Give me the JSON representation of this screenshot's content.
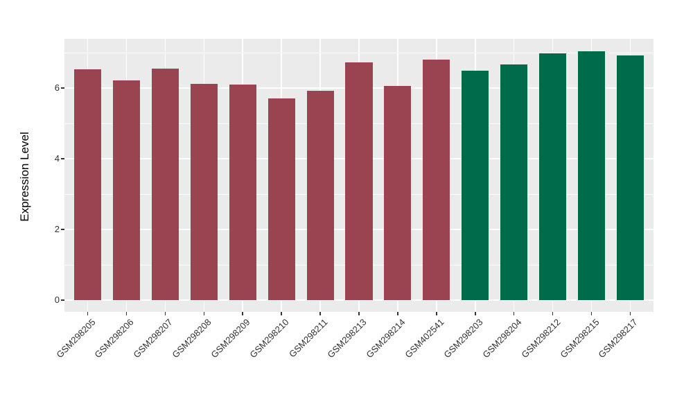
{
  "chart_data": {
    "type": "bar",
    "title": "",
    "xlabel": "",
    "ylabel": "Expression Level",
    "ylim": [
      0,
      7.39
    ],
    "yticks_major": [
      0,
      2,
      4,
      6
    ],
    "yticks_minor": [
      1,
      3,
      5,
      7
    ],
    "grid": "on",
    "legend": "none",
    "panel_background": "#EBEBEB",
    "grid_color": "#FFFFFF",
    "axis_text_color": "#303030",
    "categories": [
      "GSM298205",
      "GSM298206",
      "GSM298207",
      "GSM298208",
      "GSM298209",
      "GSM298210",
      "GSM298211",
      "GSM298213",
      "GSM298214",
      "GSM402541",
      "GSM298203",
      "GSM298204",
      "GSM298212",
      "GSM298215",
      "GSM298217"
    ],
    "series": [
      {
        "name": "Expression Level",
        "values": [
          6.52,
          6.22,
          6.55,
          6.12,
          6.1,
          5.71,
          5.93,
          6.73,
          6.05,
          6.81,
          6.49,
          6.67,
          6.99,
          7.03,
          6.92
        ]
      }
    ],
    "bar_groups": [
      "group1",
      "group1",
      "group1",
      "group1",
      "group1",
      "group1",
      "group1",
      "group1",
      "group1",
      "group1",
      "group2",
      "group2",
      "group2",
      "group2",
      "group2"
    ],
    "group_colors": {
      "group1": "#9B4451",
      "group2": "#006B4A"
    }
  }
}
